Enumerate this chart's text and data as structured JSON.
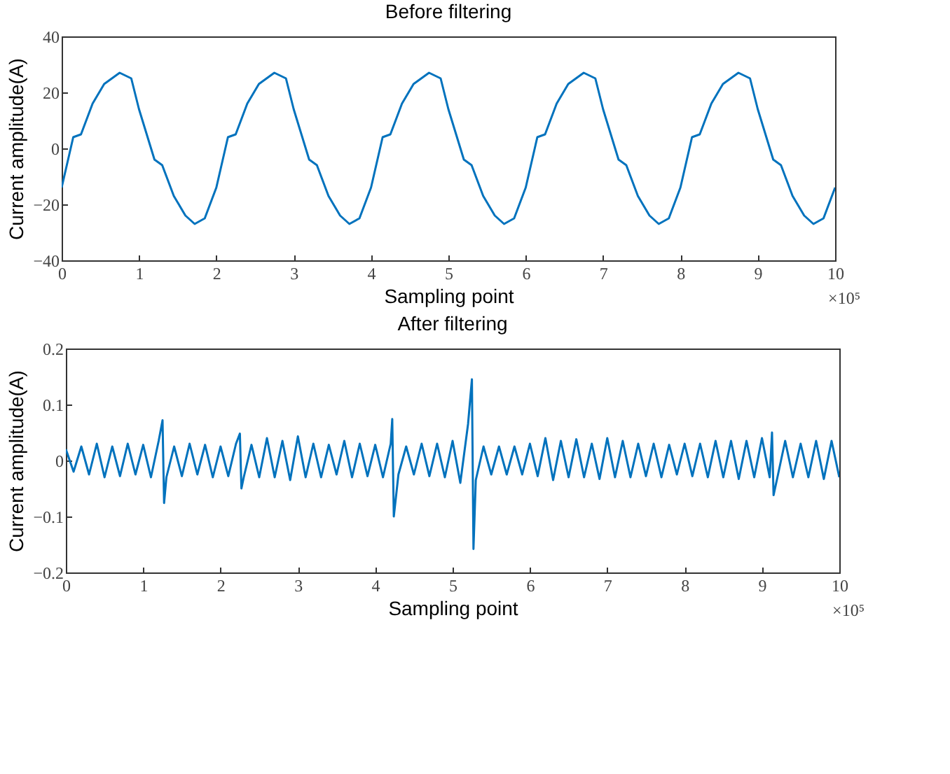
{
  "chart_data": [
    {
      "type": "line",
      "title": "Before filtering",
      "xlabel": "Sampling point",
      "ylabel": "Current amplitude(A)",
      "x": [
        0,
        0.15,
        0.25,
        0.4,
        0.55,
        0.75,
        0.9,
        1,
        1.2,
        1.3,
        1.45,
        1.6,
        1.72,
        1.85,
        2,
        2.15,
        2.25,
        2.4,
        2.55,
        2.75,
        2.9,
        3,
        3.2,
        3.3,
        3.45,
        3.6,
        3.72,
        3.85,
        4,
        4.15,
        4.25,
        4.4,
        4.55,
        4.75,
        4.9,
        5,
        5.2,
        5.3,
        5.45,
        5.6,
        5.72,
        5.85,
        6,
        6.15,
        6.25,
        6.4,
        6.55,
        6.75,
        6.9,
        7,
        7.2,
        7.3,
        7.45,
        7.6,
        7.72,
        7.85,
        8,
        8.15,
        8.25,
        8.4,
        8.55,
        8.75,
        8.9,
        9,
        9.2,
        9.3,
        9.45,
        9.6,
        9.72,
        9.85,
        10
      ],
      "series": [
        {
          "color": "#0072bd",
          "values": [
            -14,
            4,
            5,
            16,
            23,
            27,
            25,
            14,
            -4,
            -6,
            -17,
            -24,
            -27,
            -25,
            -14,
            4,
            5,
            16,
            23,
            27,
            25,
            14,
            -4,
            -6,
            -17,
            -24,
            -27,
            -25,
            -14,
            4,
            5,
            16,
            23,
            27,
            25,
            14,
            -4,
            -6,
            -17,
            -24,
            -27,
            -25,
            -14,
            4,
            5,
            16,
            23,
            27,
            25,
            14,
            -4,
            -6,
            -17,
            -24,
            -27,
            -25,
            -14,
            4,
            5,
            16,
            23,
            27,
            25,
            14,
            -4,
            -6,
            -17,
            -24,
            -27,
            -25,
            -14
          ]
        }
      ],
      "xlim": [
        0,
        10
      ],
      "ylim": [
        -40,
        40
      ],
      "xticks": [
        0,
        1,
        2,
        3,
        4,
        5,
        6,
        7,
        8,
        9,
        10
      ],
      "yticks": [
        -40,
        -20,
        0,
        20,
        40
      ],
      "annotations": [
        "×10⁵"
      ]
    },
    {
      "type": "line",
      "title": "After filtering",
      "xlabel": "Sampling point",
      "ylabel": "Current amplitude(A)",
      "x": [
        0,
        0.1,
        0.2,
        0.3,
        0.4,
        0.5,
        0.6,
        0.7,
        0.8,
        0.9,
        1.0,
        1.1,
        1.2,
        1.25,
        1.27,
        1.3,
        1.4,
        1.5,
        1.6,
        1.7,
        1.8,
        1.9,
        2.0,
        2.1,
        2.2,
        2.25,
        2.27,
        2.3,
        2.4,
        2.5,
        2.6,
        2.7,
        2.8,
        2.9,
        3.0,
        3.1,
        3.2,
        3.3,
        3.4,
        3.5,
        3.6,
        3.7,
        3.8,
        3.9,
        4.0,
        4.1,
        4.2,
        4.22,
        4.24,
        4.3,
        4.4,
        4.5,
        4.6,
        4.7,
        4.8,
        4.9,
        5.0,
        5.1,
        5.2,
        5.25,
        5.27,
        5.3,
        5.4,
        5.5,
        5.6,
        5.7,
        5.8,
        5.9,
        6.0,
        6.1,
        6.2,
        6.3,
        6.4,
        6.5,
        6.6,
        6.7,
        6.8,
        6.9,
        7.0,
        7.1,
        7.2,
        7.3,
        7.4,
        7.5,
        7.6,
        7.7,
        7.8,
        7.9,
        8.0,
        8.1,
        8.2,
        8.3,
        8.4,
        8.5,
        8.6,
        8.7,
        8.8,
        8.9,
        9.0,
        9.1,
        9.13,
        9.15,
        9.2,
        9.3,
        9.4,
        9.5,
        9.6,
        9.7,
        9.8,
        9.9,
        10
      ],
      "series": [
        {
          "color": "#0072bd",
          "values": [
            0.02,
            -0.02,
            0.025,
            -0.025,
            0.03,
            -0.03,
            0.025,
            -0.028,
            0.03,
            -0.025,
            0.028,
            -0.03,
            0.035,
            0.072,
            -0.076,
            -0.03,
            0.025,
            -0.028,
            0.03,
            -0.025,
            0.028,
            -0.03,
            0.025,
            -0.028,
            0.03,
            0.048,
            -0.05,
            -0.03,
            0.028,
            -0.03,
            0.04,
            -0.03,
            0.035,
            -0.035,
            0.043,
            -0.03,
            0.03,
            -0.03,
            0.028,
            -0.025,
            0.035,
            -0.03,
            0.03,
            -0.028,
            0.028,
            -0.03,
            0.03,
            0.074,
            -0.1,
            -0.025,
            0.025,
            -0.025,
            0.03,
            -0.028,
            0.03,
            -0.03,
            0.035,
            -0.04,
            0.065,
            0.145,
            -0.158,
            -0.035,
            0.025,
            -0.025,
            0.025,
            -0.025,
            0.025,
            -0.025,
            0.03,
            -0.028,
            0.04,
            -0.035,
            0.035,
            -0.03,
            0.038,
            -0.03,
            0.03,
            -0.033,
            0.04,
            -0.03,
            0.035,
            -0.03,
            0.03,
            -0.028,
            0.03,
            -0.03,
            0.028,
            -0.025,
            0.03,
            -0.028,
            0.03,
            -0.03,
            0.035,
            -0.03,
            0.035,
            -0.033,
            0.035,
            -0.03,
            0.04,
            -0.03,
            0.05,
            -0.062,
            -0.03,
            0.035,
            -0.03,
            0.03,
            -0.03,
            0.035,
            -0.033,
            0.035,
            -0.03
          ]
        }
      ],
      "xlim": [
        0,
        10
      ],
      "ylim": [
        -0.2,
        0.2
      ],
      "xticks": [
        0,
        1,
        2,
        3,
        4,
        5,
        6,
        7,
        8,
        9,
        10
      ],
      "yticks": [
        -0.2,
        -0.1,
        0,
        0.1,
        0.2
      ],
      "annotations": [
        "×10⁵"
      ]
    }
  ]
}
